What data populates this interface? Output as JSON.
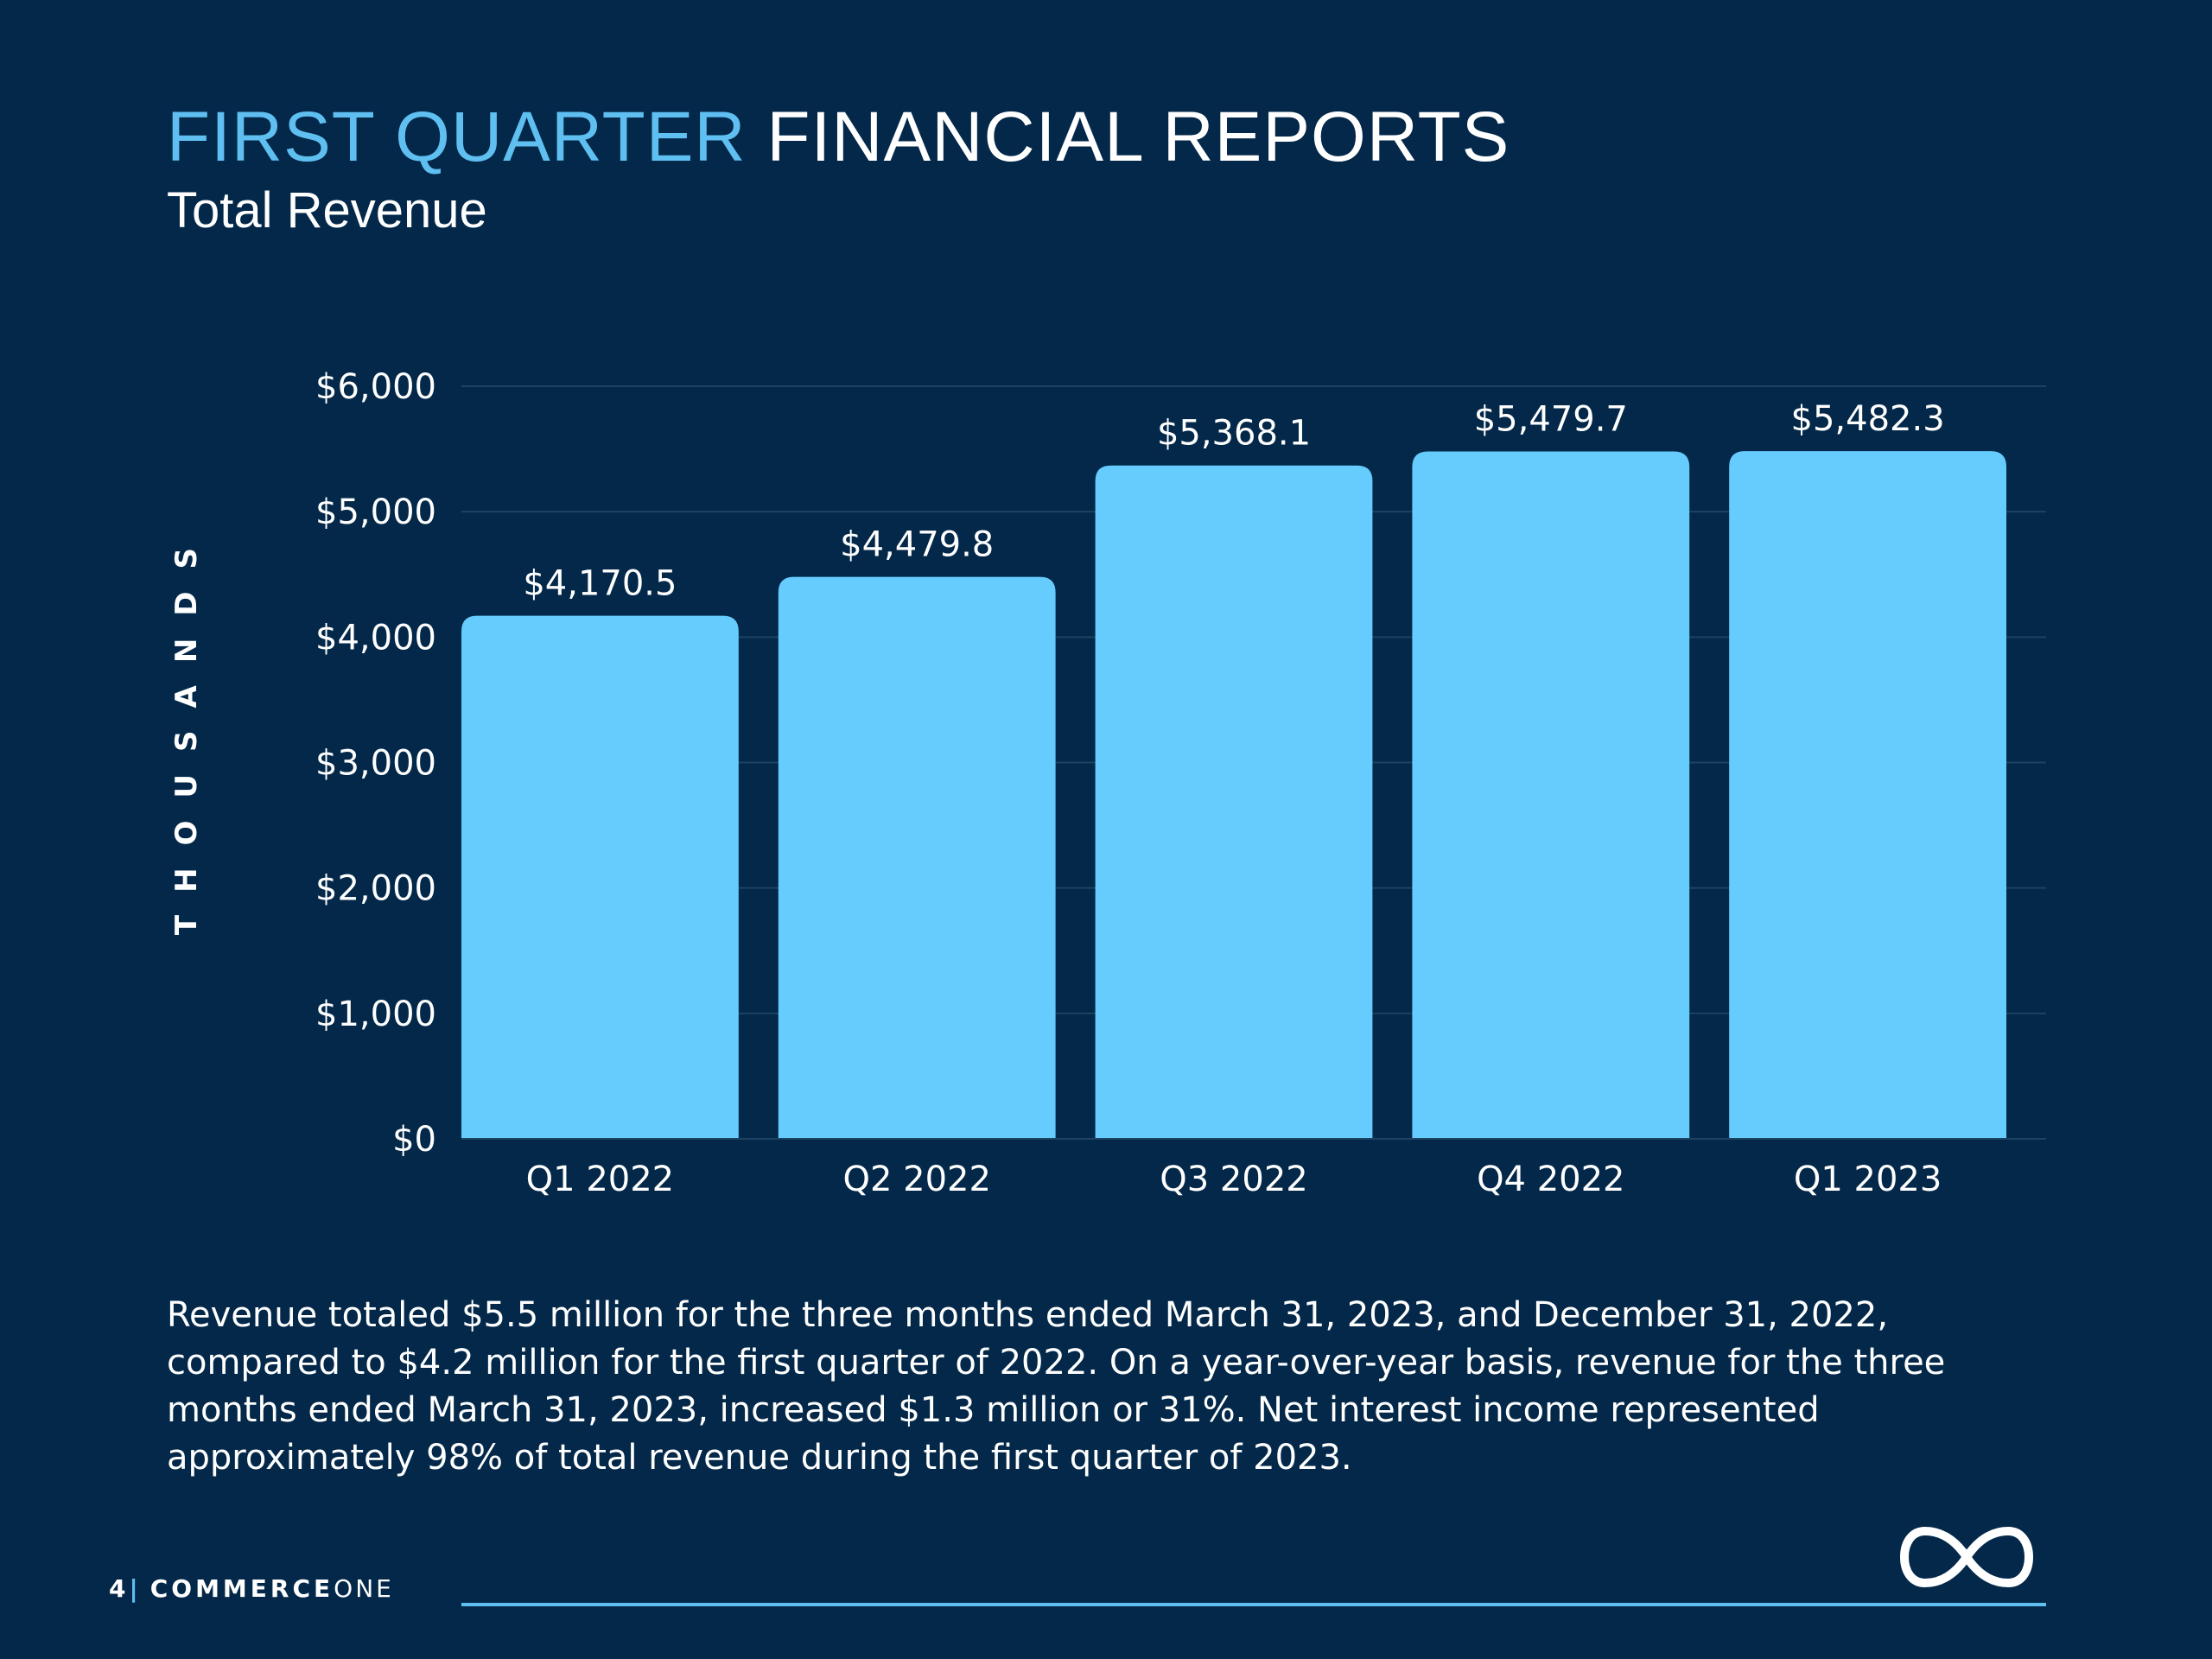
{
  "header": {
    "title_highlight": "FIRST QUARTER",
    "title_rest": "FINANCIAL REPORTS",
    "subtitle": "Total Revenue"
  },
  "chart_data": {
    "type": "bar",
    "categories": [
      "Q1 2022",
      "Q2 2022",
      "Q3 2022",
      "Q4 2022",
      "Q1 2023"
    ],
    "values": [
      4170.5,
      4479.8,
      5368.1,
      5479.7,
      5482.3
    ],
    "value_labels": [
      "$4,170.5",
      "$4,479.8",
      "$5,368.1",
      "$5,479.7",
      "$5,482.3"
    ],
    "y_ticks": [
      0,
      1000,
      2000,
      3000,
      4000,
      5000,
      6000
    ],
    "y_tick_labels": [
      "$0",
      "$1,000",
      "$2,000",
      "$3,000",
      "$4,000",
      "$5,000",
      "$6,000"
    ],
    "ylim": [
      0,
      6000
    ],
    "ylabel": "THOUSANDS",
    "xlabel": "",
    "grid": true,
    "legend": "none",
    "bar_color": "#66ccfe",
    "grid_color": "#1c4462"
  },
  "body": {
    "paragraph": "Revenue totaled $5.5 million for the three months ended March 31, 2023, and December 31, 2022, compared to $4.2 million for the first quarter of 2022. On a year-over-year basis, revenue for the three months ended March 31, 2023, increased $1.3 million or 31%. Net interest income represented approximately 98% of total revenue during the first quarter of 2023."
  },
  "footer": {
    "page_number": "4",
    "separator": "|",
    "brand_bold": "COMMERCE",
    "brand_light": "ONE",
    "logo_icon": "infinity-logo-icon"
  },
  "colors": {
    "background": "#032849",
    "accent": "#5fbff1",
    "bar": "#66ccfe",
    "text": "#ffffff"
  }
}
